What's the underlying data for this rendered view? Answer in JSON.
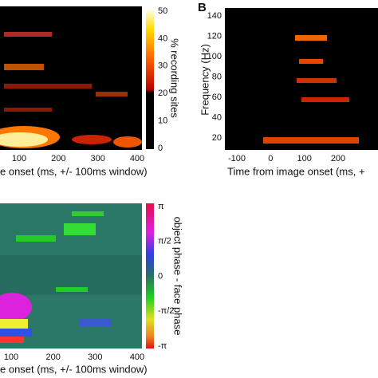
{
  "panels": [
    {
      "xticks": [
        "100",
        "200",
        "300",
        "400"
      ],
      "xlabel": "e onset (ms, +/- 100ms window)",
      "colorbar": {
        "ticks": [
          "50",
          "40",
          "30",
          "20",
          "10",
          "0"
        ],
        "label": "% recording sites"
      }
    },
    {
      "letter": "B",
      "yticks": [
        "140",
        "120",
        "100",
        "80",
        "60",
        "40",
        "20"
      ],
      "ylabel": "Frequency (Hz)",
      "xticks": [
        "-100",
        "0",
        "100",
        "200"
      ],
      "xlabel": "Time from image onset (ms, +"
    },
    {
      "xticks": [
        "100",
        "200",
        "300",
        "400"
      ],
      "xlabel": "e onset (ms, +/- 100ms window)",
      "colorbar": {
        "ticks": [
          "π",
          "π/2",
          "0",
          "-π/2",
          "-π"
        ],
        "label": "object phase - face phase"
      }
    }
  ]
}
